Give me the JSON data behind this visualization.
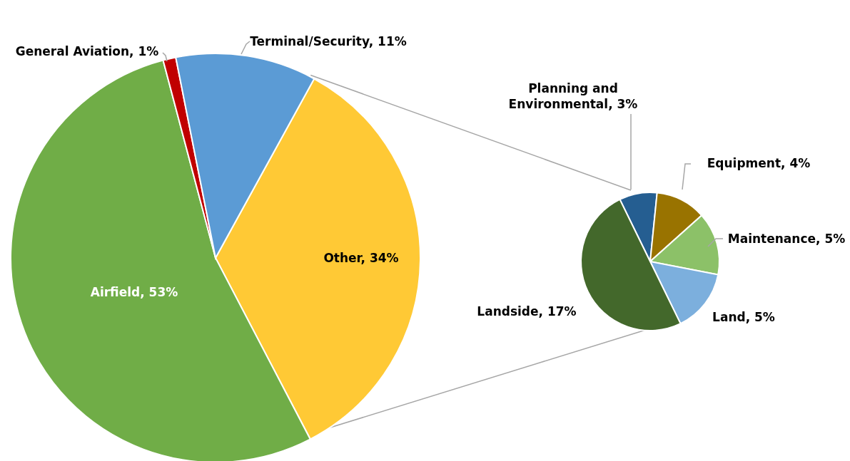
{
  "chart_data": [
    {
      "type": "pie",
      "categories": [
        "Other",
        "Airfield",
        "General Aviation",
        "Terminal/Security"
      ],
      "values": [
        34,
        53,
        1,
        11
      ],
      "colors": [
        "#ffc935",
        "#70ad47",
        "#c00000",
        "#5b9bd5"
      ],
      "value_labels": [
        "34%",
        "53%",
        "1%",
        "11%"
      ]
    },
    {
      "type": "pie",
      "categories": [
        "Planning and Environmental",
        "Equipment",
        "Maintenance",
        "Land",
        "Landside"
      ],
      "values": [
        3,
        4,
        5,
        5,
        17
      ],
      "colors": [
        "#255e91",
        "#997300",
        "#8cc168",
        "#7cafdd",
        "#43682b"
      ],
      "value_labels": [
        "3%",
        "4%",
        "5%",
        "5%",
        "17%"
      ]
    }
  ]
}
